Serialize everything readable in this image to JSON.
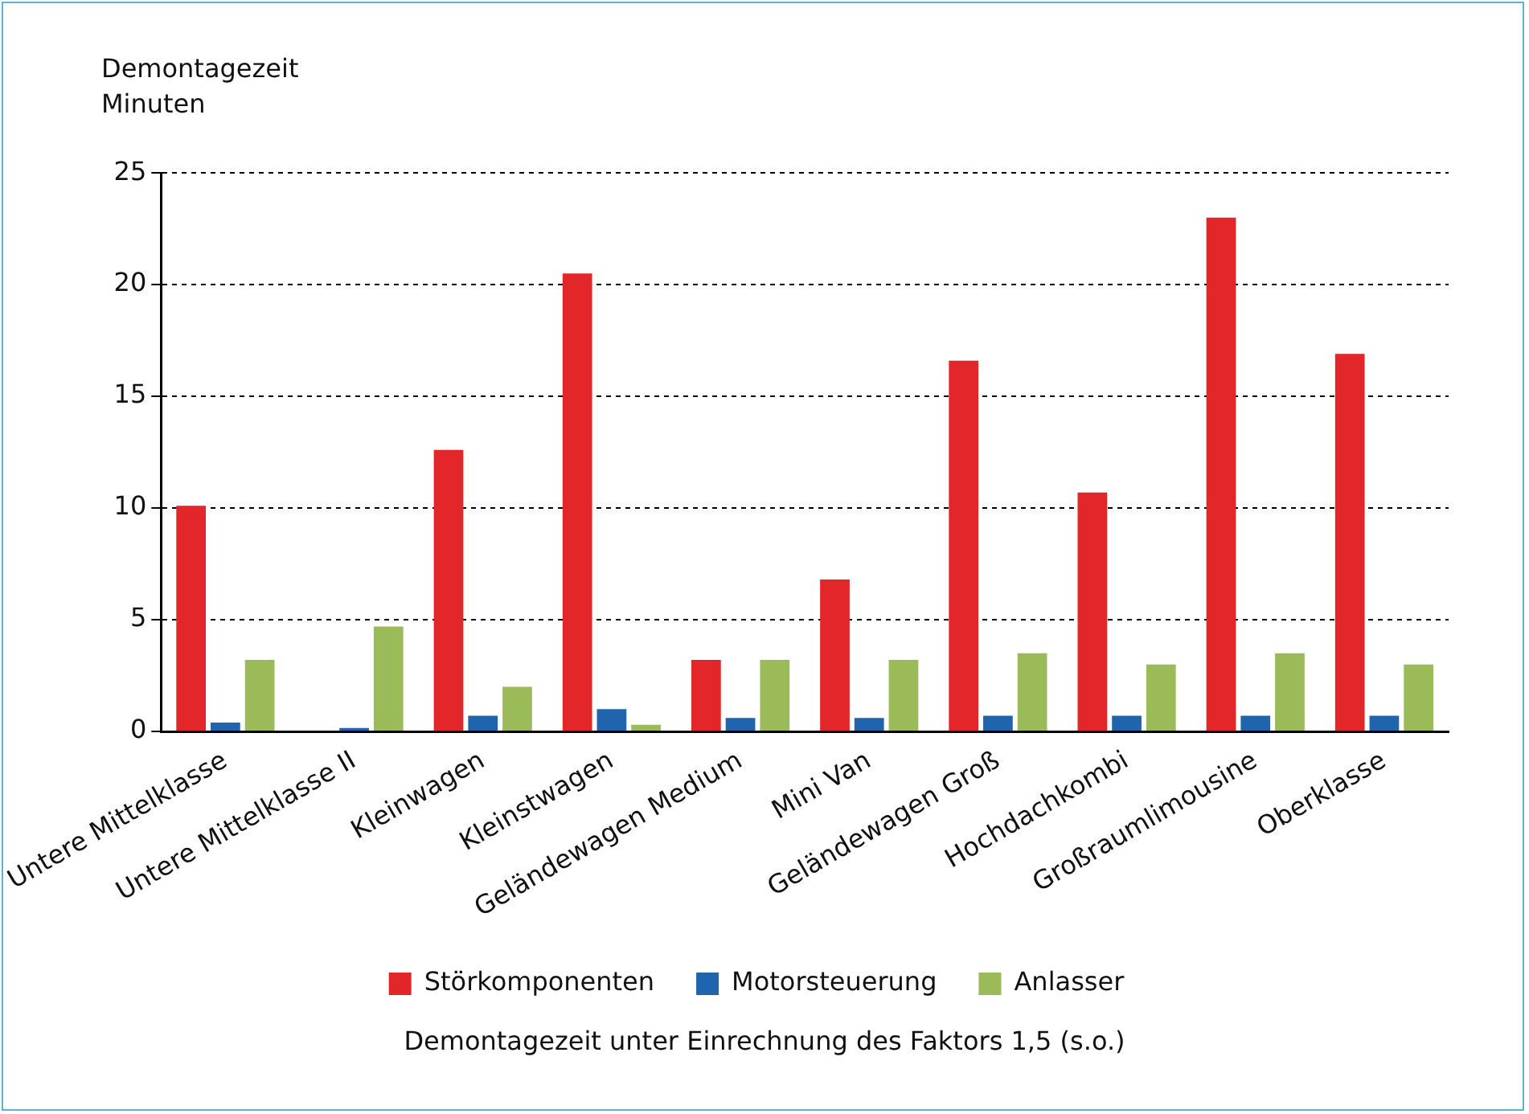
{
  "chart_data": {
    "type": "bar",
    "ylabel": "Demontagezeit\nMinuten",
    "categories": [
      "Untere Mittelklasse",
      "Untere Mittelklasse II",
      "Kleinwagen",
      "Kleinstwagen",
      "Geländewagen Medium",
      "Mini Van",
      "Geländewagen Groß",
      "Hochdachkombi",
      "Großraumlimousine",
      "Oberklasse"
    ],
    "series": [
      {
        "name": "Störkomponenten",
        "color": "#e3262a",
        "values": [
          10.1,
          0,
          12.6,
          20.5,
          3.2,
          6.8,
          16.6,
          10.7,
          23.0,
          16.9
        ]
      },
      {
        "name": "Motorsteuerung",
        "color": "#1f64ad",
        "values": [
          0.4,
          0.15,
          0.7,
          1.0,
          0.6,
          0.6,
          0.7,
          0.7,
          0.7,
          0.7
        ]
      },
      {
        "name": "Anlasser",
        "color": "#9bbb59",
        "values": [
          3.2,
          4.7,
          2.0,
          0.3,
          3.2,
          3.2,
          3.5,
          3.0,
          3.5,
          3.0
        ]
      }
    ],
    "ylim": [
      0,
      25
    ],
    "yticks": [
      0,
      5,
      10,
      15,
      20,
      25
    ],
    "grid": "y",
    "legend": "bottom",
    "annotations": [
      "Demontagezeit unter Einrechnung des Faktors 1,5 (s.o.)"
    ]
  }
}
